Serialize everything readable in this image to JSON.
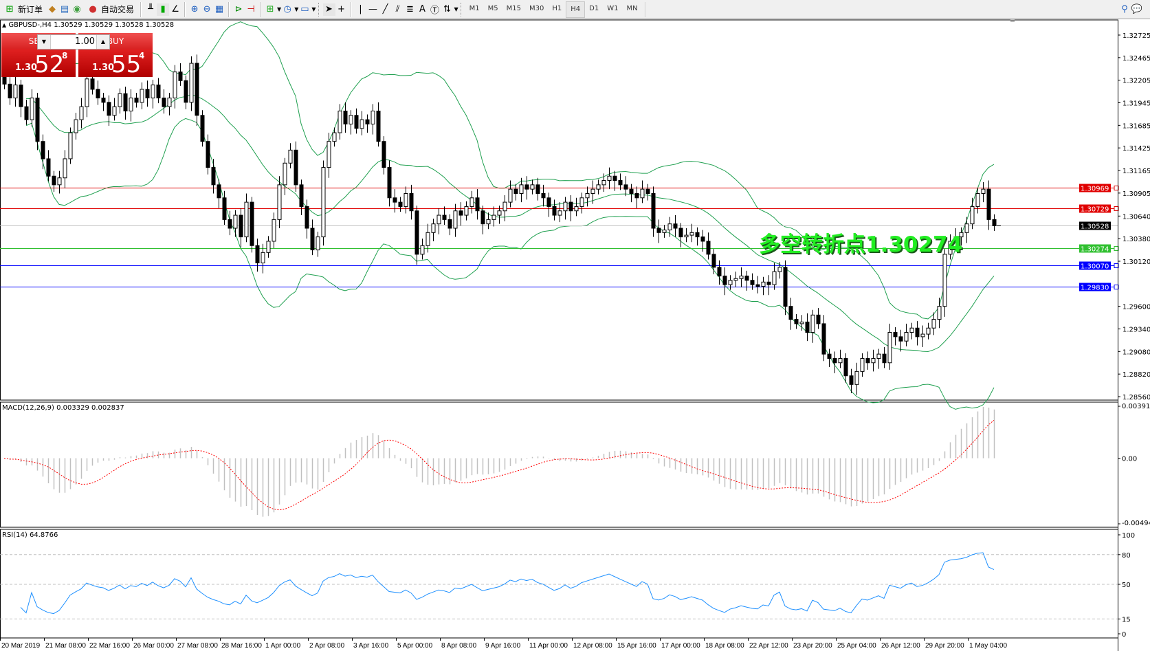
{
  "toolbar": {
    "new_order_label": "新订单",
    "auto_trading_label": "自动交易",
    "timeframes": [
      "M1",
      "M5",
      "M15",
      "M30",
      "H1",
      "H4",
      "D1",
      "W1",
      "MN"
    ],
    "active_timeframe": "H4",
    "text_tool_label": "A"
  },
  "chart": {
    "header": "GBPUSD-,H4  1.30529 1.30529 1.30528 1.30528"
  },
  "trade_panel": {
    "sell_label": "SELL",
    "buy_label": "BUY",
    "lot": "1.00",
    "sell_prefix": "1.30",
    "sell_big": "52",
    "sell_small": "8",
    "buy_prefix": "1.30",
    "buy_big": "55",
    "buy_small": "4"
  },
  "price_axis": {
    "ticks": [
      "1.32725",
      "1.32465",
      "1.32205",
      "1.31945",
      "1.31685",
      "1.31425",
      "1.31165",
      "1.30905",
      "1.30640",
      "1.30380",
      "1.30120",
      "1.29600",
      "1.29340",
      "1.29080",
      "1.28820",
      "1.28560"
    ]
  },
  "levels": [
    {
      "price": "1.30969",
      "color": "#e00000"
    },
    {
      "price": "1.30729",
      "color": "#e00000"
    },
    {
      "price": "1.30528",
      "color": "#000000",
      "line_color": "#c0c0c0"
    },
    {
      "price": "1.30274",
      "color": "#30c030"
    },
    {
      "price": "1.30070",
      "color": "#0000ff"
    },
    {
      "price": "1.29830",
      "color": "#0000ff"
    }
  ],
  "annotation": "多空转折点1.30274",
  "macd": {
    "label": "MACD(12,26,9) 0.003329 0.002837",
    "ticks": [
      "0.003912",
      "0.00",
      "-0.004944"
    ]
  },
  "rsi": {
    "label": "RSI(14) 64.8766",
    "ticks": [
      "100",
      "80",
      "50",
      "15",
      "0"
    ]
  },
  "time_axis": [
    "20 Mar 2019",
    "21 Mar 08:00",
    "22 Mar 16:00",
    "26 Mar 00:00",
    "27 Mar 08:00",
    "28 Mar 16:00",
    "1 Apr 00:00",
    "2 Apr 08:00",
    "3 Apr 16:00",
    "5 Apr 00:00",
    "8 Apr 08:00",
    "9 Apr 16:00",
    "11 Apr 00:00",
    "12 Apr 08:00",
    "15 Apr 16:00",
    "17 Apr 00:00",
    "18 Apr 08:00",
    "22 Apr 12:00",
    "23 Apr 20:00",
    "25 Apr 04:00",
    "26 Apr 12:00",
    "29 Apr 20:00",
    "1 May 04:00"
  ],
  "colors": {
    "bollinger": "#20a050",
    "macd_histogram": "#c0c0c0",
    "macd_signal": "#ff0000",
    "rsi_line": "#1e90ff",
    "bull_body": "#ffffff",
    "bear_body": "#000000"
  },
  "chart_data": {
    "type": "candlestick",
    "symbol": "GBPUSD-",
    "timeframe": "H4",
    "indicators": [
      "Bollinger Bands(20,2)",
      "MACD(12,26,9)",
      "RSI(14)"
    ],
    "close": [
      1.3216,
      1.32,
      1.3215,
      1.319,
      1.3175,
      1.32,
      1.315,
      1.313,
      1.311,
      1.31,
      1.3108,
      1.313,
      1.316,
      1.3175,
      1.319,
      1.3222,
      1.321,
      1.32,
      1.3195,
      1.318,
      1.319,
      1.3205,
      1.3185,
      1.32,
      1.3195,
      1.321,
      1.32,
      1.3215,
      1.32,
      1.319,
      1.32,
      1.323,
      1.322,
      1.3195,
      1.324,
      1.318,
      1.315,
      1.312,
      1.31,
      1.3085,
      1.306,
      1.305,
      1.3065,
      1.304,
      1.308,
      1.303,
      1.301,
      1.3022,
      1.3035,
      1.306,
      1.31,
      1.3125,
      1.314,
      1.31,
      1.3075,
      1.305,
      1.3025,
      1.304,
      1.312,
      1.315,
      1.316,
      1.3185,
      1.317,
      1.318,
      1.3165,
      1.3175,
      1.317,
      1.3185,
      1.315,
      1.312,
      1.3085,
      1.308,
      1.3075,
      1.309,
      1.307,
      1.302,
      1.303,
      1.3045,
      1.3055,
      1.3065,
      1.306,
      1.305,
      1.307,
      1.3065,
      1.3075,
      1.3085,
      1.307,
      1.3055,
      1.306,
      1.3065,
      1.307,
      1.308,
      1.3095,
      1.309,
      1.31,
      1.3095,
      1.31,
      1.309,
      1.3085,
      1.3075,
      1.3065,
      1.307,
      1.308,
      1.307,
      1.3075,
      1.3085,
      1.309,
      1.3095,
      1.31,
      1.3105,
      1.311,
      1.3105,
      1.31,
      1.3095,
      1.309,
      1.3085,
      1.3095,
      1.309,
      1.305,
      1.3045,
      1.3048,
      1.3055,
      1.305,
      1.304,
      1.3042,
      1.3045,
      1.304,
      1.3035,
      1.302,
      1.3005,
      1.2995,
      1.2985,
      1.299,
      1.2992,
      1.2995,
      1.299,
      1.2985,
      1.2983,
      1.2988,
      1.2985,
      1.3,
      1.3005,
      1.296,
      1.2945,
      1.294,
      1.2942,
      1.293,
      1.295,
      1.294,
      1.2905,
      1.29,
      1.2895,
      1.29,
      1.288,
      1.287,
      1.2885,
      1.29,
      1.2895,
      1.29,
      1.2905,
      1.2895,
      1.293,
      1.2925,
      1.292,
      1.293,
      1.2935,
      1.2925,
      1.2928,
      1.2935,
      1.2945,
      1.296,
      1.302,
      1.3035,
      1.304,
      1.3045,
      1.3055,
      1.3075,
      1.309,
      1.3095,
      1.306,
      1.30528
    ]
  }
}
